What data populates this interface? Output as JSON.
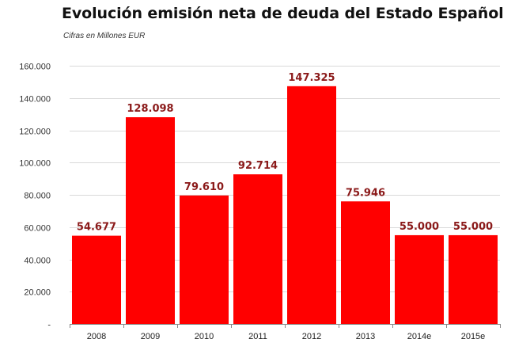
{
  "colors": {
    "bar": "#ff0000",
    "label": "#8b1a1a",
    "grid": "#d9d9d9",
    "axis": "#888888"
  },
  "chart_data": {
    "type": "bar",
    "title": "Evolución emisión neta de deuda del Estado Español",
    "subtitle": "Cifras en Millones EUR",
    "categories": [
      "2008",
      "2009",
      "2010",
      "2011",
      "2012",
      "2013",
      "2014e",
      "2015e"
    ],
    "values": [
      54677,
      128098,
      79610,
      92714,
      147325,
      75946,
      55000,
      55000
    ],
    "data_labels": [
      "54.677",
      "128.098",
      "79.610",
      "92.714",
      "147.325",
      "75.946",
      "55.000",
      "55.000"
    ],
    "ylim": [
      0,
      160000
    ],
    "yticks": [
      0,
      20000,
      40000,
      60000,
      80000,
      100000,
      120000,
      140000,
      160000
    ],
    "ytick_labels": [
      "-",
      "20.000",
      "40.000",
      "60.000",
      "80.000",
      "100.000",
      "120.000",
      "140.000",
      "160.000"
    ],
    "xlabel": "",
    "ylabel": "",
    "grid": true,
    "legend": "none"
  }
}
